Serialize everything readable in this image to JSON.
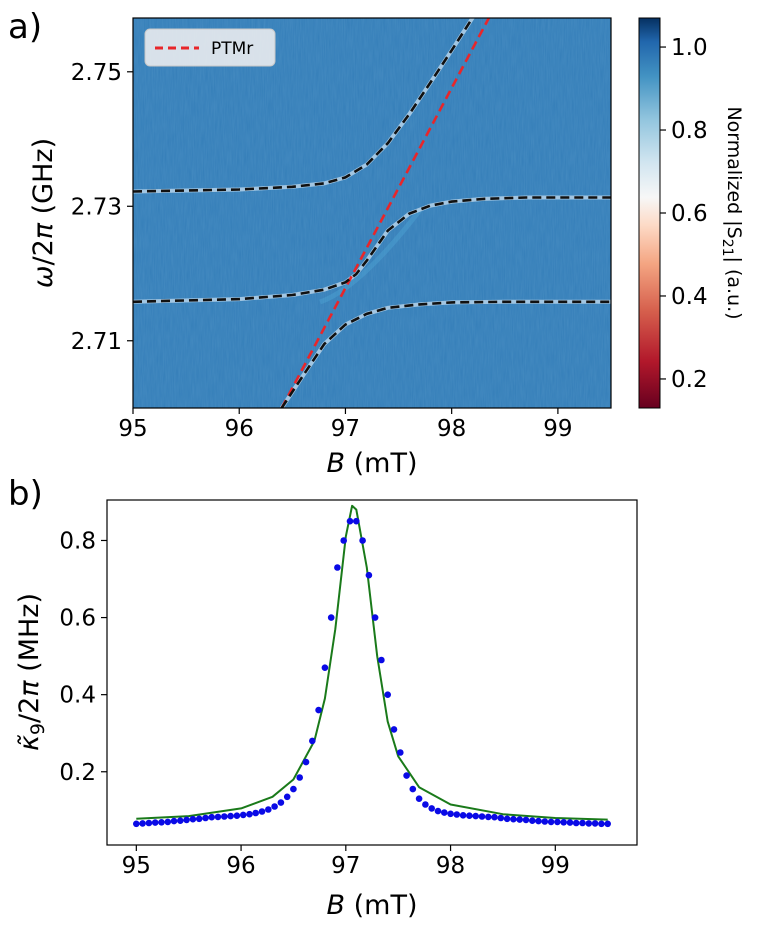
{
  "chart_data": [
    {
      "panel_label": "a)",
      "type": "heatmap",
      "xlabel": "B (mT)",
      "ylabel": "ω/2π (GHz)",
      "xlim": [
        95,
        99.5
      ],
      "ylim": [
        2.7,
        2.758
      ],
      "xticks": [
        "95",
        "96",
        "97",
        "98",
        "99"
      ],
      "yticks": [
        "2.71",
        "2.73",
        "2.75"
      ],
      "colorbar": {
        "label": "Normalized |S21| (a.u.)",
        "range": [
          0.13,
          1.07
        ],
        "ticks": [
          "0.2",
          "0.4",
          "0.6",
          "0.8",
          "1.0"
        ],
        "colormap": "RdBu"
      },
      "background_level": 0.97,
      "legend": {
        "entries": [
          "PTMr"
        ],
        "position": "top-left"
      },
      "series": [
        {
          "name": "PTMr",
          "style": "dashed",
          "color": "#e8262a",
          "x": [
            96.4,
            98.4
          ],
          "y": [
            2.7,
            2.7595
          ]
        },
        {
          "style": "dashed",
          "color": "#111111",
          "role": "upper polariton branch",
          "x": [
            95.0,
            96.0,
            96.5,
            96.8,
            97.0,
            97.2,
            97.4,
            97.6,
            97.8,
            98.0,
            98.2,
            98.4
          ],
          "y": [
            2.7322,
            2.7325,
            2.7329,
            2.7334,
            2.7343,
            2.7362,
            2.7394,
            2.7437,
            2.7484,
            2.7532,
            2.7581,
            2.763
          ]
        },
        {
          "style": "dashed",
          "color": "#111111",
          "role": "middle polariton branch",
          "x": [
            95.0,
            96.0,
            96.5,
            96.8,
            97.0,
            97.1,
            97.2,
            97.4,
            97.6,
            97.8,
            98.0,
            98.3,
            98.7,
            99.5
          ],
          "y": [
            2.7158,
            2.7162,
            2.7168,
            2.7176,
            2.7187,
            2.7199,
            2.7219,
            2.7264,
            2.7289,
            2.7301,
            2.7307,
            2.7311,
            2.7313,
            2.7313
          ]
        },
        {
          "style": "dashed",
          "color": "#111111",
          "role": "lower polariton branch",
          "x": [
            96.4,
            96.6,
            96.8,
            97.0,
            97.2,
            97.4,
            97.7,
            98.0,
            98.5,
            99.5
          ],
          "y": [
            2.7,
            2.7048,
            2.7095,
            2.7124,
            2.714,
            2.7149,
            2.7154,
            2.7157,
            2.7158,
            2.7158
          ]
        }
      ]
    },
    {
      "panel_label": "b)",
      "type": "scatter",
      "xlabel": "B (mT)",
      "ylabel": "κ̃9/2π (MHz)",
      "xlim": [
        94.72,
        99.78
      ],
      "ylim": [
        0.01,
        0.905
      ],
      "xticks": [
        "95",
        "96",
        "97",
        "98",
        "99"
      ],
      "yticks": [
        "0.2",
        "0.4",
        "0.6",
        "0.8"
      ],
      "series": [
        {
          "style": "markers",
          "color": "#0a0ae6",
          "x": [
            95.0,
            95.06,
            95.12,
            95.18,
            95.24,
            95.3,
            95.36,
            95.42,
            95.48,
            95.54,
            95.6,
            95.66,
            95.72,
            95.78,
            95.84,
            95.9,
            95.96,
            96.02,
            96.08,
            96.14,
            96.2,
            96.26,
            96.32,
            96.38,
            96.44,
            96.5,
            96.56,
            96.62,
            96.68,
            96.74,
            96.8,
            96.86,
            96.92,
            96.98,
            97.04,
            97.1,
            97.16,
            97.22,
            97.28,
            97.34,
            97.4,
            97.46,
            97.52,
            97.58,
            97.64,
            97.7,
            97.76,
            97.82,
            97.88,
            97.94,
            98.0,
            98.06,
            98.12,
            98.18,
            98.24,
            98.3,
            98.36,
            98.42,
            98.48,
            98.54,
            98.6,
            98.66,
            98.72,
            98.78,
            98.84,
            98.9,
            98.96,
            99.02,
            99.08,
            99.14,
            99.2,
            99.26,
            99.32,
            99.38,
            99.44,
            99.5
          ],
          "y": [
            0.065,
            0.066,
            0.067,
            0.068,
            0.069,
            0.07,
            0.072,
            0.073,
            0.075,
            0.077,
            0.078,
            0.08,
            0.082,
            0.083,
            0.084,
            0.085,
            0.086,
            0.088,
            0.09,
            0.093,
            0.097,
            0.102,
            0.11,
            0.12,
            0.135,
            0.155,
            0.185,
            0.225,
            0.28,
            0.36,
            0.47,
            0.6,
            0.73,
            0.8,
            0.85,
            0.85,
            0.8,
            0.71,
            0.6,
            0.49,
            0.4,
            0.31,
            0.25,
            0.19,
            0.155,
            0.13,
            0.115,
            0.105,
            0.098,
            0.094,
            0.091,
            0.089,
            0.087,
            0.086,
            0.085,
            0.084,
            0.083,
            0.082,
            0.08,
            0.078,
            0.077,
            0.076,
            0.075,
            0.073,
            0.072,
            0.071,
            0.07,
            0.07,
            0.069,
            0.068,
            0.067,
            0.067,
            0.066,
            0.066,
            0.065,
            0.065
          ]
        },
        {
          "style": "line",
          "color": "#1a7a1a",
          "role": "fit",
          "x": [
            95.0,
            95.5,
            96.0,
            96.3,
            96.5,
            96.7,
            96.8,
            96.9,
            97.0,
            97.06,
            97.1,
            97.2,
            97.3,
            97.4,
            97.5,
            97.7,
            98.0,
            98.5,
            99.0,
            99.5
          ],
          "y": [
            0.078,
            0.085,
            0.105,
            0.135,
            0.18,
            0.28,
            0.39,
            0.57,
            0.81,
            0.89,
            0.88,
            0.73,
            0.5,
            0.33,
            0.24,
            0.16,
            0.115,
            0.09,
            0.08,
            0.076
          ]
        }
      ]
    }
  ]
}
